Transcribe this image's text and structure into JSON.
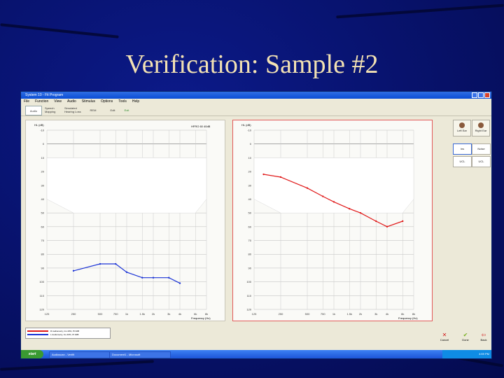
{
  "slide": {
    "title": "Verification: Sample #2"
  },
  "window": {
    "title": "System 10 - Fit Program",
    "menu": [
      "File",
      "Function",
      "View",
      "Audio",
      "Stimulus",
      "Options",
      "Tools",
      "Help"
    ],
    "toolbar": [
      "Audio",
      "Speech Mapping",
      "Simulated Hearing Loss",
      "REM",
      "Edit",
      "Exit"
    ]
  },
  "panels": {
    "left": {
      "ylabel": "HL (dB)",
      "info": "HFRO  60  40dB",
      "xlabel": "Frequency (Hz)",
      "yticks": [
        "-10",
        "0",
        "10",
        "20",
        "30",
        "40",
        "50",
        "60",
        "70",
        "80",
        "90",
        "100",
        "110",
        "120"
      ],
      "xticks": [
        "125",
        "250",
        "500",
        "750",
        "1k",
        "1.5k",
        "2k",
        "3k",
        "4k",
        "6k",
        "8k"
      ]
    },
    "right": {
      "ylabel": "HL (dB)",
      "xlabel": "Frequency (Hz)",
      "yticks": [
        "-10",
        "0",
        "10",
        "20",
        "30",
        "40",
        "50",
        "60",
        "70",
        "80",
        "90",
        "100",
        "110",
        "120"
      ],
      "xticks": [
        "125",
        "250",
        "500",
        "750",
        "1k",
        "1.5k",
        "2k",
        "3k",
        "4k",
        "6k",
        "8k"
      ]
    }
  },
  "legend": {
    "red": "R Audiometry, Ins 40%, Pt 0dB",
    "blue": "L Audiometry, Ins 40%, Pt 0dB"
  },
  "side": {
    "left_ear": "Left Ear",
    "right_ear": "Right Ear",
    "btn1": "Ins",
    "btn2": "Noise",
    "btn3": "UCL",
    "btn4": "UCL"
  },
  "actions": {
    "cancel": "Cancel",
    "done": "Done",
    "back": "Back"
  },
  "taskbar": {
    "start": "start",
    "task1": "Audioscan - Verifit",
    "task2": "Document1 - Microsoft",
    "clock": "4:59 PM"
  },
  "colors": {
    "red_series": "#e01818",
    "blue_series": "#1a33d6",
    "slide_title": "#f3e2b3"
  },
  "chart_data": [
    {
      "type": "line",
      "panel": "left",
      "x": [
        "125",
        "250",
        "500",
        "750",
        "1k",
        "1.5k",
        "2k",
        "3k",
        "4k",
        "6k",
        "8k"
      ],
      "ylabel": "HL (dB)",
      "xlabel": "Frequency (Hz)",
      "ylim": [
        -10,
        120
      ],
      "y_inverted": true,
      "grid": true,
      "banana": [
        [
          125,
          10
        ],
        [
          8000,
          10
        ],
        [
          8000,
          40
        ],
        [
          6000,
          50
        ],
        [
          250,
          50
        ],
        [
          125,
          40
        ]
      ],
      "series": [
        {
          "color": "blue",
          "points": [
            [
              250,
              92
            ],
            [
              500,
              87
            ],
            [
              750,
              87
            ],
            [
              1000,
              93
            ],
            [
              1500,
              97
            ],
            [
              2000,
              97
            ],
            [
              3000,
              97
            ],
            [
              4000,
              101
            ]
          ]
        }
      ]
    },
    {
      "type": "line",
      "panel": "right",
      "x": [
        "125",
        "250",
        "500",
        "750",
        "1k",
        "1.5k",
        "2k",
        "3k",
        "4k",
        "6k",
        "8k"
      ],
      "ylabel": "HL (dB)",
      "xlabel": "Frequency (Hz)",
      "ylim": [
        -10,
        120
      ],
      "y_inverted": true,
      "grid": true,
      "banana": [
        [
          125,
          10
        ],
        [
          8000,
          10
        ],
        [
          8000,
          40
        ],
        [
          6000,
          50
        ],
        [
          250,
          50
        ],
        [
          125,
          40
        ]
      ],
      "series": [
        {
          "color": "red",
          "points": [
            [
              160,
              22
            ],
            [
              250,
              24
            ],
            [
              500,
              32
            ],
            [
              750,
              38
            ],
            [
              1000,
              42
            ],
            [
              1500,
              47
            ],
            [
              2000,
              50
            ],
            [
              3000,
              56
            ],
            [
              4000,
              60
            ],
            [
              6000,
              56
            ]
          ]
        }
      ]
    }
  ]
}
